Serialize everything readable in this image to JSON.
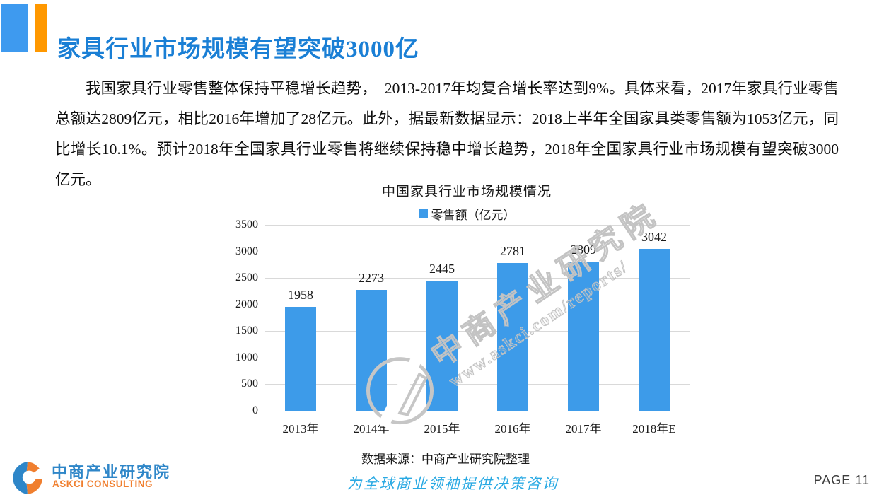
{
  "colors": {
    "accent_blue": "#3E9AEF",
    "accent_orange": "#FF9800",
    "title_blue": "#1A7FD5",
    "logo_blue": "#2E86C8",
    "logo_orange": "#F07F2F",
    "tagline_blue": "#29A9E3"
  },
  "header": {
    "title": "家具行业市场规模有望突破3000亿"
  },
  "body_text": {
    "paragraph": "我国家具行业零售整体保持平稳增长趋势，　2013-2017年均复合增长率达到9%。具体来看，2017年家具行业零售总额达2809亿元，相比2016年增加了28亿元。此外，据最新数据显示：2018上半年全国家具类零售额为1053亿元，同比增长10.1%。预计2018年全国家具行业零售将继续保持稳中增长趋势，2018年全国家具行业市场规模有望突破3000亿元。"
  },
  "chart_data": {
    "type": "bar",
    "title": "中国家具行业市场规模情况",
    "legend": "零售额（亿元）",
    "legend_position": "top",
    "categories": [
      "2013年",
      "2014年",
      "2015年",
      "2016年",
      "2017年",
      "2018年E"
    ],
    "values": [
      1958,
      2273,
      2445,
      2781,
      2809,
      3042
    ],
    "xlabel": "",
    "ylabel": "",
    "ylim": [
      0,
      3500
    ],
    "ytick_step": 500,
    "grid": true,
    "bar_color": "#3D9BE9",
    "source": "数据来源：中商产业研究院整理"
  },
  "watermark": {
    "line1": "中商产业研究院",
    "line2": "www.askci.com/reports/"
  },
  "footer": {
    "logo_cn": "中商产业研究院",
    "logo_en": "ASKCI CONSULTING",
    "tagline": "为全球商业领袖提供决策咨询",
    "page": "PAGE 11"
  }
}
